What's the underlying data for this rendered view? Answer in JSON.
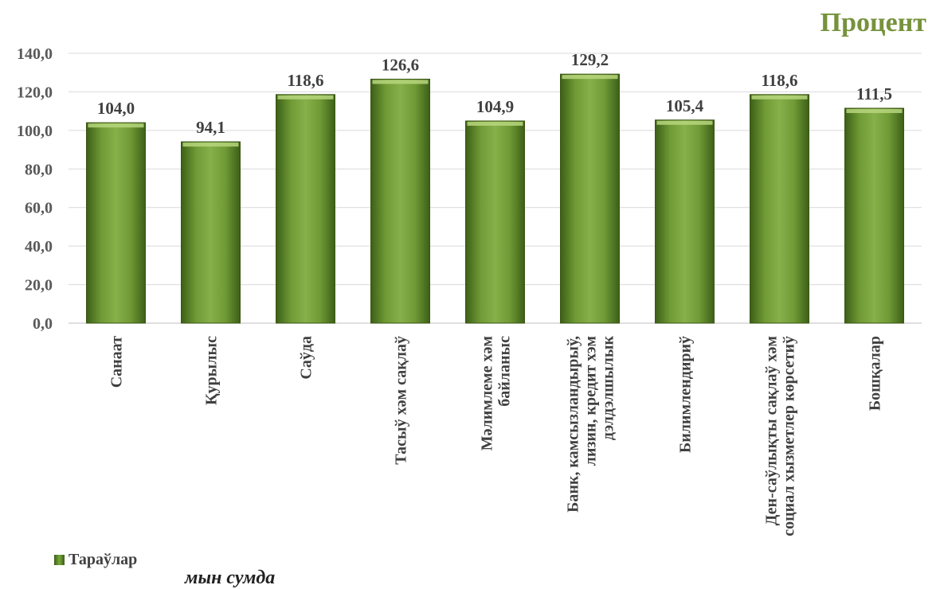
{
  "page_title": "Процент",
  "units_note": "мын сумда",
  "legend": {
    "label": "Тараўлар"
  },
  "colors": {
    "bar_main": "#76923c",
    "bar_light": "#a6c96a",
    "bar_dark": "#4f6228",
    "axis_text": "#595959",
    "title": "#76923c"
  },
  "chart_data": {
    "type": "bar",
    "categories": [
      "Санаат",
      "Қурылыс",
      "Саўда",
      "Тасыў хәм сақлаў",
      "Мәлимлеме хәм байланыс",
      "Банк, камсызландырыў, лизин, кредит хэм дэлдэлшылык",
      "Билимлендириў",
      "Ден-саўлықты сақлаў хәм социал хызметлер көрсетиў",
      "Бошқалар"
    ],
    "category_lines": [
      [
        "Санаат"
      ],
      [
        "Қурылыс"
      ],
      [
        "Саўда"
      ],
      [
        "Тасыў хәм сақлаў"
      ],
      [
        "Мәлимлеме хәм",
        "байланыс"
      ],
      [
        "Банк, камсызландырыў,",
        "лизин, кредит хэм",
        "дэлдэлшылык"
      ],
      [
        "Билимлендириў"
      ],
      [
        "Ден-саўлықты сақлаў хәм",
        "социал хызметлер көрсетиў"
      ],
      [
        "Бошқалар"
      ]
    ],
    "series": [
      {
        "name": "Тараўлар",
        "values": [
          104.0,
          94.1,
          118.6,
          126.6,
          104.9,
          129.2,
          105.4,
          118.6,
          111.5
        ]
      }
    ],
    "value_labels": [
      "104,0",
      "94,1",
      "118,6",
      "126,6",
      "104,9",
      "129,2",
      "105,4",
      "118,6",
      "111,5"
    ],
    "yticks": [
      0,
      20,
      40,
      60,
      80,
      100,
      120,
      140
    ],
    "ytick_labels": [
      "0,0",
      "20,0",
      "40,0",
      "60,0",
      "80,0",
      "100,0",
      "120,0",
      "140,0"
    ],
    "ylim": [
      0,
      140
    ],
    "grid": true,
    "legend_position": "bottom-left"
  }
}
